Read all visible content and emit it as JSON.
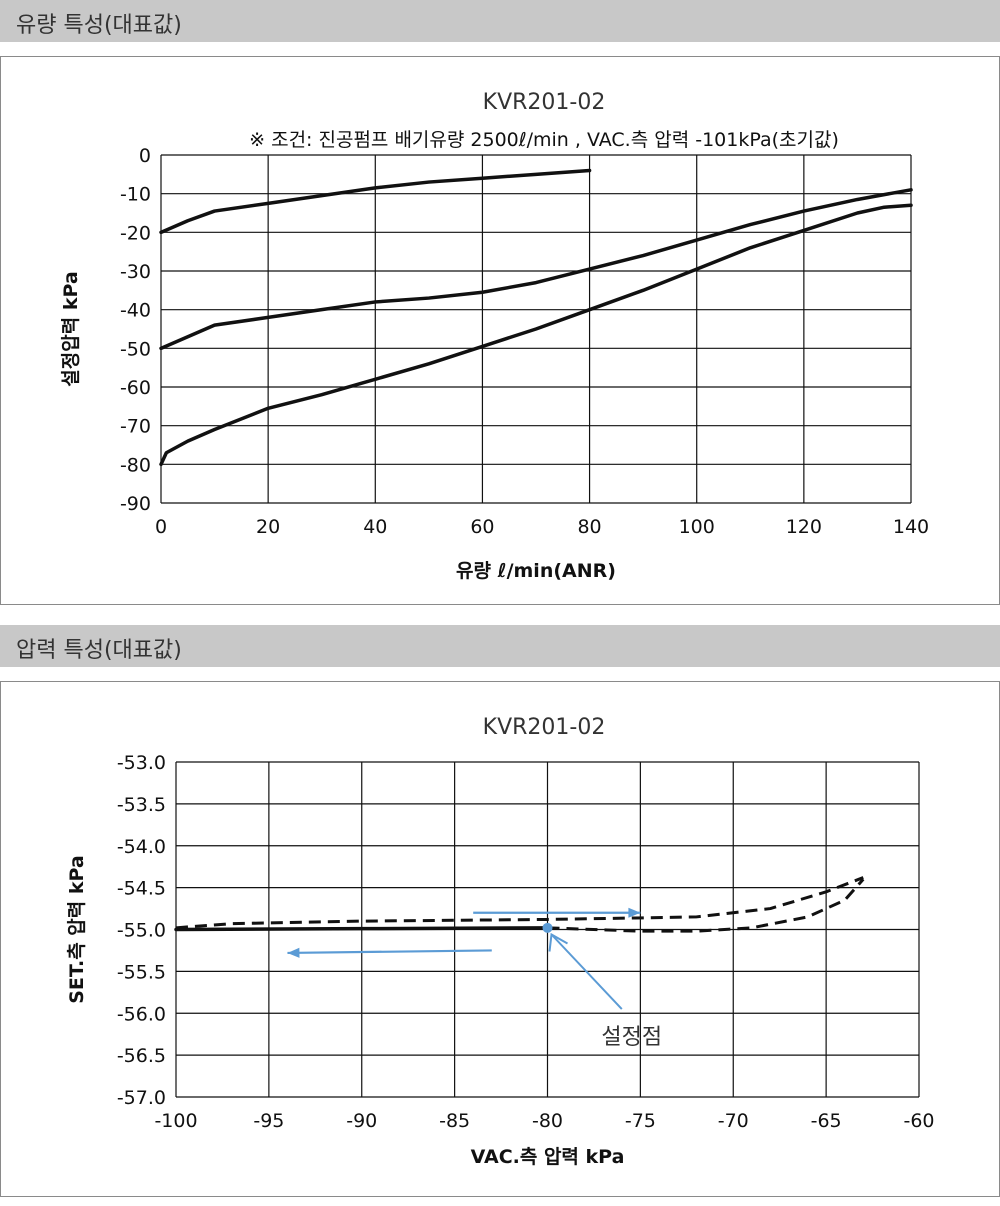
{
  "sections": [
    {
      "title": "유량 특성(대표값)"
    },
    {
      "title": "압력 특성(대표값)"
    }
  ],
  "colors": {
    "line": "#111111",
    "grid": "#111111",
    "header_bg": "#c8c8c8",
    "annotation": "#5b9bd5"
  },
  "chart_data": [
    {
      "type": "line",
      "title": "KVR201-02",
      "subtitle": "※ 조건: 진공펌프 배기유량 2500ℓ/min , VAC.측 압력 -101kPa(초기값)",
      "xlabel": "유량 ℓ/min(ANR)",
      "ylabel": "설정압력 kPa",
      "xlim": [
        0,
        140
      ],
      "ylim": [
        -90,
        0
      ],
      "xticks": [
        "0",
        "20",
        "40",
        "60",
        "80",
        "100",
        "120",
        "140"
      ],
      "yticks": [
        "0",
        "-10",
        "-20",
        "-30",
        "-40",
        "-50",
        "-60",
        "-70",
        "-80",
        "-90"
      ],
      "grid": true,
      "series": [
        {
          "x": [
            0,
            5,
            10,
            20,
            30,
            40,
            50,
            60,
            70,
            80
          ],
          "y": [
            -20,
            -17,
            -14.5,
            -12.5,
            -10.5,
            -8.5,
            -7,
            -6,
            -5,
            -4
          ]
        },
        {
          "x": [
            0,
            5,
            10,
            20,
            30,
            40,
            50,
            60,
            70,
            80,
            90,
            100,
            110,
            120,
            130,
            140
          ],
          "y": [
            -50,
            -47,
            -44,
            -42,
            -40,
            -38,
            -37,
            -35.5,
            -33,
            -29.5,
            -26,
            -22,
            -18,
            -14.5,
            -11.5,
            -9
          ]
        },
        {
          "x": [
            0,
            1,
            5,
            10,
            20,
            30,
            40,
            50,
            60,
            70,
            80,
            90,
            100,
            110,
            120,
            130,
            135,
            140
          ],
          "y": [
            -80,
            -77,
            -74,
            -71,
            -65.5,
            -62,
            -58,
            -54,
            -49.5,
            -45,
            -40,
            -35,
            -29.5,
            -24,
            -19.5,
            -15,
            -13.5,
            -13
          ]
        }
      ]
    },
    {
      "type": "line",
      "title": "KVR201-02",
      "xlabel": "VAC.측 압력 kPa",
      "ylabel": "SET.측 압력 kPa",
      "xlim": [
        -100,
        -60
      ],
      "ylim": [
        -57.0,
        -53.0
      ],
      "xticks": [
        "-100",
        "-95",
        "-90",
        "-85",
        "-80",
        "-75",
        "-70",
        "-65",
        "-60"
      ],
      "yticks": [
        "-53.0",
        "-53.5",
        "-54.0",
        "-54.5",
        "-55.0",
        "-55.5",
        "-56.0",
        "-56.5",
        "-57.0"
      ],
      "grid": true,
      "series": [
        {
          "style": "solid",
          "x": [
            -100,
            -90,
            -80
          ],
          "y": [
            -55.0,
            -54.99,
            -54.98
          ]
        },
        {
          "style": "dashed",
          "x": [
            -100,
            -97,
            -90,
            -80,
            -72,
            -68,
            -65,
            -63
          ],
          "y": [
            -54.98,
            -54.93,
            -54.9,
            -54.88,
            -54.85,
            -54.75,
            -54.55,
            -54.38
          ]
        },
        {
          "style": "dashed",
          "x": [
            -80,
            -75,
            -72,
            -69,
            -66,
            -64,
            -63
          ],
          "y": [
            -54.98,
            -55.02,
            -55.02,
            -54.98,
            -54.85,
            -54.65,
            -54.4
          ]
        }
      ],
      "annotations": [
        {
          "type": "arrow",
          "from": [
            -84,
            -54.8
          ],
          "to": [
            -75,
            -54.8
          ]
        },
        {
          "type": "arrow",
          "from": [
            -83,
            -55.25
          ],
          "to": [
            -94,
            -55.28
          ]
        },
        {
          "type": "point",
          "x": -80,
          "y": -54.98
        },
        {
          "type": "label",
          "text": "설정점",
          "arrow_from": [
            -76,
            -55.95
          ],
          "arrow_to": [
            -80,
            -55.0
          ]
        }
      ]
    }
  ]
}
